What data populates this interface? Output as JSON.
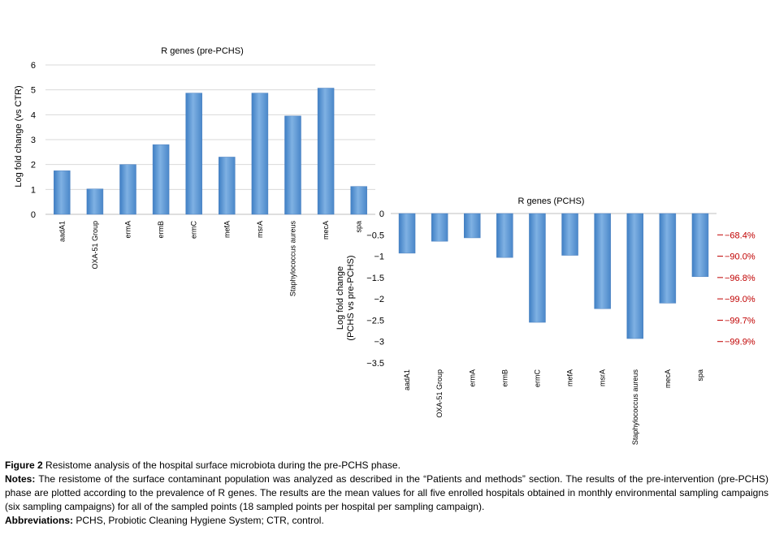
{
  "chart_data": [
    {
      "type": "bar",
      "title": "R genes (pre-PCHS)",
      "ylabel": "Log fold change (vs CTR)",
      "xlabel": "",
      "ylim": [
        0,
        6
      ],
      "yticks": [
        0,
        1,
        2,
        3,
        4,
        5,
        6
      ],
      "grid": true,
      "categories": [
        "aadA1",
        "OXA-51 Group",
        "ermA",
        "ermB",
        "ermC",
        "mefA",
        "msrA",
        "Staphylococcus aureus",
        "mecA",
        "spa"
      ],
      "values": [
        1.75,
        1.02,
        2.0,
        2.8,
        4.87,
        2.3,
        4.87,
        3.95,
        5.07,
        1.12
      ],
      "bar_color": "#5b9bd5"
    },
    {
      "type": "bar",
      "title": "R genes (PCHS)",
      "ylabel_lines": [
        "Log fold change",
        "(PCHS vs pre-PCHS)"
      ],
      "xlabel": "",
      "ylim": [
        -3.5,
        0
      ],
      "yticks": [
        "0",
        "−0.5",
        "−1",
        "−1.5",
        "−2",
        "−2.5",
        "−3",
        "−3.5"
      ],
      "grid": false,
      "categories": [
        "aadA1",
        "OXA-51 Group",
        "ermA",
        "ermB",
        "ermC",
        "mefA",
        "msrA",
        "Staphylococcus aureus",
        "mecA",
        "spa"
      ],
      "values": [
        -0.93,
        -0.65,
        -0.57,
        -1.03,
        -2.55,
        -0.98,
        -2.23,
        -2.93,
        -2.1,
        -1.48
      ],
      "bar_color": "#5b9bd5",
      "secondary_axis": {
        "color": "#c00000",
        "labels": [
          "−68.4%",
          "−90.0%",
          "−96.8%",
          "−99.0%",
          "−99.7%",
          "−99.9%"
        ],
        "levels": [
          -0.5,
          -1,
          -1.5,
          -2,
          -2.5,
          -3
        ]
      }
    }
  ],
  "caption": {
    "figure_label": "Figure 2",
    "figure_text": "Resistome analysis of the hospital surface microbiota during the pre-PCHS phase.",
    "notes_label": "Notes:",
    "notes_text": "The resistome of the surface contaminant population was analyzed as described in the “Patients and methods” section. The results of the pre-intervention (pre-PCHS) phase are plotted according to the prevalence of R genes. The results are the mean values for all five enrolled hospitals obtained in monthly environmental sampling campaigns (six sampling campaigns) for all of the sampled points (18 sampled points per hospital per sampling campaign).",
    "abbrev_label": "Abbreviations:",
    "abbrev_text": "PCHS, Probiotic Cleaning Hygiene System; CTR, control."
  }
}
